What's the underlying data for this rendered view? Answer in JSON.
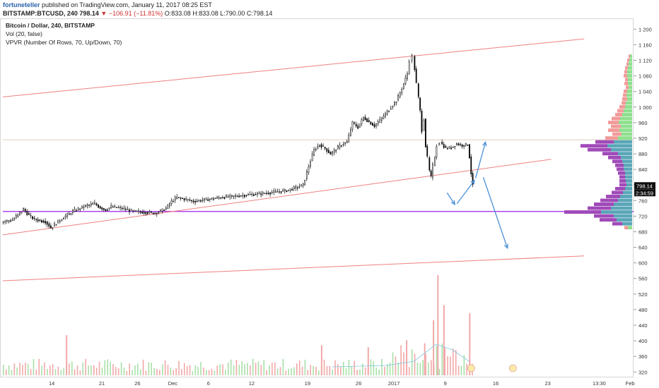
{
  "header": {
    "author": "fortuneteller",
    "published": "published on TradingView.com, January 11, 2017 08:25 EST",
    "symbol": "BITSTAMP:BTCUSD, 240",
    "price": "798.14",
    "change": "▼ −106.91 (−11.81%)",
    "ohlc": "O:833.08 H:833.08 L:790.00 C:798.14"
  },
  "legend": {
    "title": "Bitcoin / Dollar, 240, BITSTAMP",
    "vol": "Vol (20, false)",
    "vpvr": "VPVR (Number Of Rows, 70, Up/Down, 70)"
  },
  "colors": {
    "candle": "#000000",
    "trendline": "#f08080",
    "hline": "#a020f0",
    "arrow": "#4a8fd8",
    "vp_up": "#8ee08e",
    "vp_down": "#f29a9a",
    "vp_up_va": "#5aa6b8",
    "vp_down_va": "#a04ab8",
    "vol_up": "#a8e0a8",
    "vol_down": "#f2a8a8"
  },
  "chart_data": {
    "type": "candlestick",
    "symbol": "BTCUSD",
    "interval": "240",
    "y_ticks": [
      1200,
      1160,
      1120,
      1080,
      1040,
      1000,
      960,
      920,
      880,
      840,
      800,
      760,
      720,
      680,
      640,
      600,
      560,
      520,
      480,
      440,
      400,
      360,
      320
    ],
    "x_ticks": [
      "14",
      "21",
      "26",
      "Dec",
      "6",
      "12",
      "19",
      "26",
      "2017",
      "9",
      "16",
      "23",
      "13:30",
      "Feb"
    ],
    "ylim": [
      306,
      1226
    ],
    "last_price_label": "798.14",
    "countdown_label": "2:34:59",
    "price_path": [
      [
        0,
        705
      ],
      [
        2,
        710
      ],
      [
        4,
        738
      ],
      [
        5,
        722
      ],
      [
        6,
        712
      ],
      [
        8,
        706
      ],
      [
        9,
        690
      ],
      [
        10,
        702
      ],
      [
        11,
        714
      ],
      [
        13,
        732
      ],
      [
        15,
        745
      ],
      [
        17,
        752
      ],
      [
        18,
        742
      ],
      [
        19,
        736
      ],
      [
        20,
        744
      ],
      [
        22,
        740
      ],
      [
        24,
        732
      ],
      [
        26,
        730
      ],
      [
        28,
        728
      ],
      [
        29,
        733
      ],
      [
        30,
        740
      ],
      [
        31,
        758
      ],
      [
        32,
        768
      ],
      [
        34,
        762
      ],
      [
        35,
        758
      ],
      [
        37,
        762
      ],
      [
        40,
        768
      ],
      [
        43,
        772
      ],
      [
        46,
        776
      ],
      [
        48,
        779
      ],
      [
        50,
        782
      ],
      [
        52,
        786
      ],
      [
        53,
        790
      ],
      [
        55,
        800
      ],
      [
        56,
        848
      ],
      [
        57,
        890
      ],
      [
        58,
        904
      ],
      [
        59,
        894
      ],
      [
        60,
        880
      ],
      [
        61,
        892
      ],
      [
        62,
        904
      ],
      [
        63,
        910
      ],
      [
        64,
        960
      ],
      [
        65,
        948
      ],
      [
        66,
        974
      ],
      [
        67,
        962
      ],
      [
        68,
        952
      ],
      [
        69,
        966
      ],
      [
        70,
        982
      ],
      [
        71,
        1000
      ],
      [
        72,
        1016
      ],
      [
        73,
        1048
      ],
      [
        74,
        1086
      ],
      [
        74.5,
        1120
      ],
      [
        75,
        1130
      ],
      [
        75.3,
        1098
      ],
      [
        75.7,
        1060
      ],
      [
        76,
        1024
      ],
      [
        76.3,
        990
      ],
      [
        76.7,
        940
      ],
      [
        77,
        970
      ],
      [
        77.3,
        900
      ],
      [
        77.7,
        870
      ],
      [
        78,
        836
      ],
      [
        78.3,
        820
      ],
      [
        78.7,
        850
      ],
      [
        79,
        872
      ],
      [
        79.5,
        902
      ],
      [
        80,
        910
      ],
      [
        81,
        894
      ],
      [
        82,
        896
      ],
      [
        83,
        906
      ],
      [
        84,
        902
      ],
      [
        85,
        904
      ],
      [
        85.3,
        872
      ],
      [
        85.6,
        830
      ],
      [
        85.9,
        798
      ]
    ],
    "trendlines": [
      {
        "name": "upper-channel",
        "points": [
          [
            0,
            1026
          ],
          [
            106,
            1175
          ]
        ]
      },
      {
        "name": "lower-channel",
        "points": [
          [
            0,
            672
          ],
          [
            100,
            866
          ]
        ]
      },
      {
        "name": "bottom-line",
        "points": [
          [
            0,
            554
          ],
          [
            106,
            618
          ]
        ]
      }
    ],
    "horizontal_lines": [
      {
        "name": "support-purple",
        "y": 732
      },
      {
        "name": "resistance-tan",
        "y": 916
      }
    ],
    "forecast_arrows": [
      [
        [
          81,
          780
        ],
        [
          82.4,
          750
        ]
      ],
      [
        [
          82.8,
          752
        ],
        [
          86.0,
          812
        ]
      ],
      [
        [
          86.2,
          818
        ],
        [
          88.0,
          910
        ]
      ],
      [
        [
          87.6,
          820
        ],
        [
          92.0,
          638
        ]
      ]
    ],
    "volume_profile": {
      "rows": [
        {
          "price": 1130,
          "up": 3,
          "down": 2
        },
        {
          "price": 1120,
          "up": 4,
          "down": 3
        },
        {
          "price": 1110,
          "up": 5,
          "down": 3
        },
        {
          "price": 1100,
          "up": 6,
          "down": 4
        },
        {
          "price": 1090,
          "up": 7,
          "down": 4
        },
        {
          "price": 1080,
          "up": 7,
          "down": 5
        },
        {
          "price": 1070,
          "up": 6,
          "down": 4
        },
        {
          "price": 1060,
          "up": 6,
          "down": 5
        },
        {
          "price": 1050,
          "up": 5,
          "down": 4
        },
        {
          "price": 1040,
          "up": 7,
          "down": 5
        },
        {
          "price": 1030,
          "up": 8,
          "down": 5
        },
        {
          "price": 1020,
          "up": 7,
          "down": 7
        },
        {
          "price": 1010,
          "up": 9,
          "down": 6
        },
        {
          "price": 1000,
          "up": 10,
          "down": 8
        },
        {
          "price": 990,
          "up": 12,
          "down": 9
        },
        {
          "price": 980,
          "up": 14,
          "down": 10
        },
        {
          "price": 970,
          "up": 17,
          "down": 12
        },
        {
          "price": 960,
          "up": 19,
          "down": 15
        },
        {
          "price": 950,
          "up": 16,
          "down": 14
        },
        {
          "price": 940,
          "up": 18,
          "down": 16
        },
        {
          "price": 930,
          "up": 15,
          "down": 13
        },
        {
          "price": 920,
          "up": 20,
          "down": 18
        },
        {
          "price": 910,
          "up": 26,
          "down": 26
        },
        {
          "price": 900,
          "up": 35,
          "down": 38
        },
        {
          "price": 890,
          "up": 30,
          "down": 33
        },
        {
          "price": 880,
          "up": 20,
          "down": 22
        },
        {
          "price": 870,
          "up": 16,
          "down": 18
        },
        {
          "price": 860,
          "up": 14,
          "down": 14
        },
        {
          "price": 850,
          "up": 12,
          "down": 12
        },
        {
          "price": 840,
          "up": 12,
          "down": 10
        },
        {
          "price": 830,
          "up": 10,
          "down": 10
        },
        {
          "price": 820,
          "up": 10,
          "down": 8
        },
        {
          "price": 810,
          "up": 9,
          "down": 9
        },
        {
          "price": 800,
          "up": 8,
          "down": 10
        },
        {
          "price": 790,
          "up": 10,
          "down": 14
        },
        {
          "price": 780,
          "up": 13,
          "down": 16
        },
        {
          "price": 770,
          "up": 17,
          "down": 20
        },
        {
          "price": 760,
          "up": 20,
          "down": 25
        },
        {
          "price": 750,
          "up": 26,
          "down": 28
        },
        {
          "price": 740,
          "up": 30,
          "down": 33
        },
        {
          "price": 730,
          "up": 44,
          "down": 52
        },
        {
          "price": 720,
          "up": 26,
          "down": 28
        },
        {
          "price": 710,
          "up": 22,
          "down": 24
        },
        {
          "price": 700,
          "up": 14,
          "down": 14
        },
        {
          "price": 690,
          "up": 6,
          "down": 5
        }
      ]
    },
    "volume_spikes": [
      {
        "x": 79.2,
        "vol": 1.0
      },
      {
        "x": 80.3,
        "vol": 0.7
      },
      {
        "x": 78.4,
        "vol": 0.55
      },
      {
        "x": 85.0,
        "vol": 0.62
      },
      {
        "x": 73.5,
        "vol": 0.35
      },
      {
        "x": 58.0,
        "vol": 0.3
      },
      {
        "x": 11.5,
        "vol": 0.4
      },
      {
        "x": 66.5,
        "vol": 0.28
      },
      {
        "x": 76.8,
        "vol": 0.32
      }
    ]
  }
}
